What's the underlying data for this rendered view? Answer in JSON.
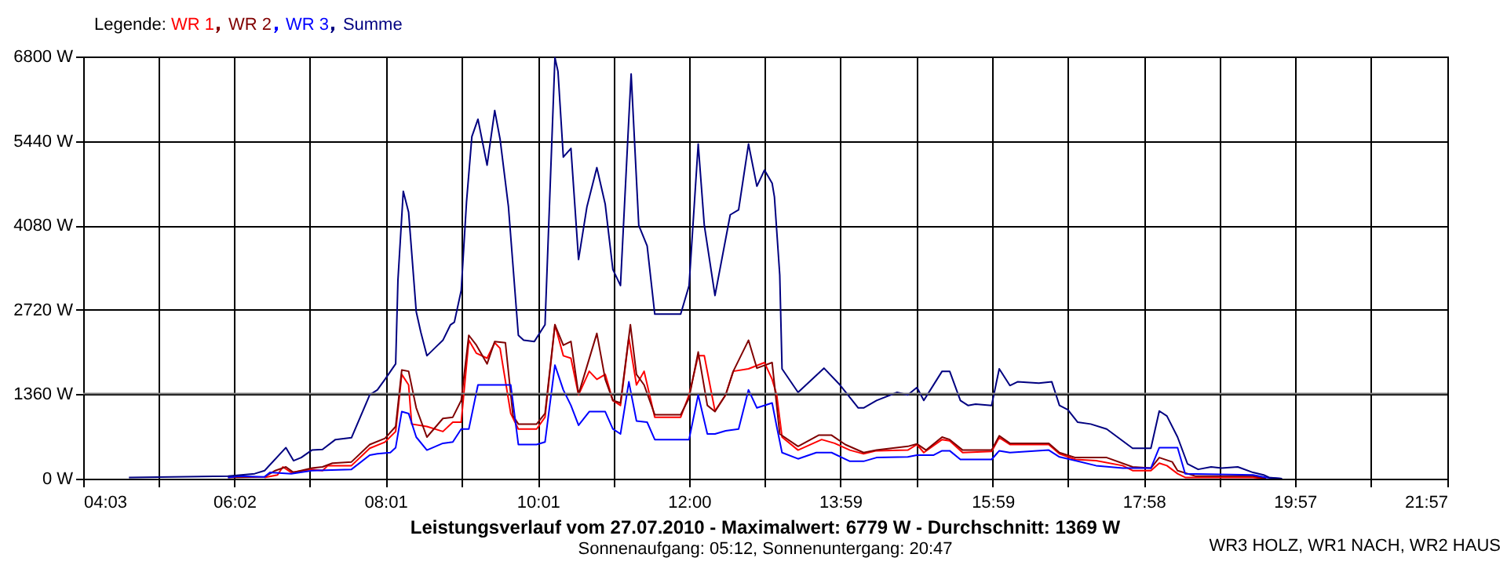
{
  "chart_data": {
    "type": "line",
    "title": "Leistungsverlauf vom 27.07.2010 - Maximalwert: 6779 W - Durchschnitt: 1369 W",
    "subtitle": "Sonnenaufgang: 05:12, Sonnenuntergang: 20:47",
    "legend_title": "Legende:",
    "annotations": [
      "WR3 HOLZ, WR1 NACH, WR2 HAUS"
    ],
    "xlim": [
      4.05,
      21.95
    ],
    "xticks": [
      {
        "value": 4.05,
        "label": "04:03"
      },
      {
        "value": 5.0417,
        "label": null
      },
      {
        "value": 6.0333,
        "label": "06:02"
      },
      {
        "value": 7.025,
        "label": null
      },
      {
        "value": 8.0167,
        "label": "08:01"
      },
      {
        "value": 9.0167,
        "label": null
      },
      {
        "value": 10.0167,
        "label": "10:01"
      },
      {
        "value": 11.0083,
        "label": null
      },
      {
        "value": 12,
        "label": "12:00"
      },
      {
        "value": 12.9917,
        "label": null
      },
      {
        "value": 13.9833,
        "label": "13:59"
      },
      {
        "value": 14.9833,
        "label": null
      },
      {
        "value": 15.9833,
        "label": "15:59"
      },
      {
        "value": 16.975,
        "label": null
      },
      {
        "value": 17.9667,
        "label": "17:58"
      },
      {
        "value": 18.9583,
        "label": null
      },
      {
        "value": 19.95,
        "label": "19:57"
      },
      {
        "value": 20.95,
        "label": null
      },
      {
        "value": 21.95,
        "label": "21:57"
      }
    ],
    "ylim": [
      0,
      6800
    ],
    "yticks": [
      {
        "value": 0,
        "label": "0 W"
      },
      {
        "value": 1360,
        "label": "1360 W"
      },
      {
        "value": 2720,
        "label": "2720 W"
      },
      {
        "value": 4080,
        "label": "4080 W"
      },
      {
        "value": 5440,
        "label": "5440 W"
      },
      {
        "value": 6800,
        "label": "6800 W"
      }
    ],
    "grid": true,
    "legend": "top left",
    "ref_lines": [
      {
        "axis": "y",
        "value": 1370,
        "color": "#808080"
      }
    ],
    "series": [
      {
        "name": "WR 1",
        "color": "#ff0000",
        "x": [
          6.43,
          6.6,
          6.67,
          6.78,
          7.05,
          7.19,
          7.26,
          7.57,
          7.81,
          8.01,
          8.15,
          8.23,
          8.32,
          8.36,
          8.56,
          8.77,
          8.9,
          9.01,
          9.11,
          9.21,
          9.35,
          9.45,
          9.52,
          9.66,
          9.76,
          10.0,
          10.11,
          10.24,
          10.35,
          10.45,
          10.55,
          10.69,
          10.79,
          10.9,
          11.0,
          11.1,
          11.21,
          11.31,
          11.41,
          11.55,
          11.89,
          12.0,
          12.12,
          12.2,
          12.34,
          12.48,
          12.58,
          12.78,
          12.99,
          13.09,
          13.15,
          13.22,
          13.43,
          13.74,
          13.91,
          14.11,
          14.29,
          14.46,
          14.87,
          14.99,
          15.08,
          15.32,
          15.42,
          15.59,
          15.97,
          16.07,
          16.21,
          16.72,
          16.86,
          17.07,
          17.34,
          17.69,
          17.82,
          18.06,
          18.17,
          18.27,
          18.41,
          18.51,
          19.4,
          19.57
        ],
        "values": [
          20,
          60,
          190,
          100,
          150,
          130,
          210,
          210,
          490,
          590,
          760,
          1680,
          1510,
          880,
          840,
          760,
          910,
          910,
          2230,
          2020,
          1940,
          2190,
          2100,
          1050,
          800,
          800,
          990,
          2480,
          1980,
          1940,
          1350,
          1730,
          1600,
          1680,
          1260,
          1180,
          2270,
          1510,
          1730,
          990,
          990,
          1350,
          1980,
          1980,
          1090,
          1350,
          1730,
          1770,
          1870,
          1600,
          1350,
          670,
          460,
          630,
          570,
          460,
          400,
          450,
          460,
          550,
          420,
          630,
          610,
          420,
          440,
          660,
          550,
          550,
          400,
          310,
          290,
          210,
          130,
          130,
          250,
          210,
          80,
          20,
          20,
          0
        ]
      },
      {
        "name": "WR 2",
        "color": "#800000",
        "x": [
          5.95,
          6.43,
          6.57,
          6.71,
          6.81,
          7.05,
          7.19,
          7.32,
          7.57,
          7.81,
          8.01,
          8.15,
          8.23,
          8.32,
          8.42,
          8.56,
          8.77,
          8.9,
          9.01,
          9.11,
          9.21,
          9.35,
          9.45,
          9.59,
          9.69,
          9.76,
          10.0,
          10.11,
          10.24,
          10.35,
          10.45,
          10.55,
          10.79,
          10.9,
          11.0,
          11.1,
          11.23,
          11.31,
          11.41,
          11.55,
          11.89,
          12.0,
          12.12,
          12.24,
          12.34,
          12.48,
          12.58,
          12.78,
          12.89,
          13.09,
          13.19,
          13.43,
          13.7,
          13.87,
          14.05,
          14.29,
          14.46,
          14.87,
          14.99,
          15.11,
          15.32,
          15.42,
          15.59,
          15.97,
          16.07,
          16.21,
          16.72,
          16.86,
          17.07,
          17.48,
          17.82,
          18.06,
          18.17,
          18.34,
          18.41,
          18.65,
          19.4,
          19.57
        ],
        "values": [
          20,
          30,
          130,
          190,
          100,
          170,
          190,
          250,
          270,
          550,
          650,
          840,
          1750,
          1730,
          1140,
          670,
          970,
          990,
          1260,
          2310,
          2150,
          1850,
          2210,
          2190,
          1010,
          880,
          880,
          1050,
          2480,
          2150,
          2210,
          1360,
          2340,
          1600,
          1260,
          1220,
          2480,
          1680,
          1510,
          1030,
          1030,
          1300,
          2040,
          1180,
          1080,
          1350,
          1730,
          2230,
          1780,
          1870,
          720,
          520,
          700,
          700,
          550,
          420,
          460,
          520,
          560,
          460,
          670,
          630,
          460,
          460,
          690,
          570,
          570,
          420,
          340,
          340,
          190,
          170,
          340,
          270,
          130,
          40,
          40,
          0
        ]
      },
      {
        "name": "WR 3",
        "color": "#0000ff",
        "x": [
          5.95,
          6.09,
          6.43,
          6.5,
          6.78,
          7.05,
          7.57,
          7.81,
          7.91,
          8.08,
          8.15,
          8.23,
          8.32,
          8.42,
          8.56,
          8.77,
          8.9,
          9.01,
          9.11,
          9.23,
          9.66,
          9.76,
          10.0,
          10.11,
          10.24,
          10.35,
          10.45,
          10.55,
          10.69,
          10.9,
          11.0,
          11.1,
          11.21,
          11.31,
          11.45,
          11.55,
          12.0,
          12.12,
          12.24,
          12.34,
          12.48,
          12.65,
          12.78,
          12.89,
          13.09,
          13.15,
          13.22,
          13.43,
          13.67,
          13.87,
          14.11,
          14.29,
          14.46,
          14.87,
          14.99,
          15.21,
          15.32,
          15.42,
          15.56,
          15.97,
          16.07,
          16.21,
          16.72,
          16.86,
          17.07,
          17.34,
          17.69,
          18.06,
          18.17,
          18.41,
          18.51,
          19.4,
          19.57,
          19.78
        ],
        "values": [
          20,
          40,
          30,
          100,
          80,
          130,
          150,
          380,
          400,
          420,
          500,
          1080,
          1050,
          670,
          460,
          570,
          590,
          800,
          800,
          1510,
          1510,
          550,
          550,
          590,
          1830,
          1430,
          1180,
          860,
          1080,
          1080,
          800,
          720,
          1560,
          930,
          910,
          630,
          630,
          1350,
          720,
          720,
          770,
          800,
          1430,
          1140,
          1220,
          840,
          420,
          320,
          420,
          420,
          280,
          280,
          340,
          350,
          380,
          380,
          450,
          450,
          310,
          310,
          450,
          420,
          460,
          350,
          290,
          210,
          170,
          170,
          500,
          500,
          80,
          60,
          20,
          0
        ]
      },
      {
        "name": "Summe",
        "color": "#000080",
        "x": [
          4.65,
          5.95,
          6.3,
          6.43,
          6.71,
          6.81,
          6.91,
          7.05,
          7.19,
          7.36,
          7.57,
          7.81,
          7.91,
          8.01,
          8.15,
          8.18,
          8.25,
          8.32,
          8.42,
          8.48,
          8.56,
          8.66,
          8.77,
          8.87,
          8.92,
          9.01,
          9.08,
          9.15,
          9.23,
          9.35,
          9.45,
          9.52,
          9.63,
          9.76,
          9.83,
          9.97,
          10.11,
          10.24,
          10.28,
          10.35,
          10.45,
          10.55,
          10.66,
          10.79,
          10.9,
          11.0,
          11.1,
          11.21,
          11.24,
          11.34,
          11.45,
          11.55,
          11.89,
          12.0,
          12.12,
          12.2,
          12.34,
          12.54,
          12.65,
          12.78,
          12.89,
          12.99,
          13.09,
          13.12,
          13.19,
          13.22,
          13.43,
          13.77,
          13.98,
          14.22,
          14.29,
          14.46,
          14.73,
          14.87,
          14.99,
          15.08,
          15.32,
          15.42,
          15.56,
          15.66,
          15.76,
          15.97,
          16.07,
          16.21,
          16.31,
          16.59,
          16.76,
          16.86,
          16.97,
          17.1,
          17.27,
          17.48,
          17.82,
          17.89,
          18.06,
          18.17,
          18.27,
          18.41,
          18.54,
          18.68,
          18.85,
          18.99,
          19.2,
          19.4,
          19.54,
          19.61,
          19.78
        ],
        "values": [
          20,
          40,
          80,
          130,
          500,
          290,
          340,
          460,
          470,
          630,
          660,
          1350,
          1430,
          1600,
          1850,
          3200,
          4630,
          4290,
          2690,
          2360,
          1980,
          2100,
          2230,
          2480,
          2520,
          3030,
          4460,
          5510,
          5790,
          5050,
          5930,
          5470,
          4380,
          2310,
          2230,
          2210,
          2480,
          6780,
          6560,
          5180,
          5320,
          3530,
          4380,
          5010,
          4420,
          3370,
          3110,
          5810,
          6520,
          4080,
          3750,
          2650,
          2650,
          3110,
          5390,
          4080,
          2950,
          4250,
          4330,
          5390,
          4710,
          4970,
          4760,
          4540,
          3280,
          1770,
          1390,
          1780,
          1510,
          1140,
          1140,
          1260,
          1390,
          1350,
          1470,
          1260,
          1730,
          1730,
          1260,
          1180,
          1200,
          1180,
          1770,
          1500,
          1560,
          1540,
          1560,
          1180,
          1110,
          910,
          880,
          800,
          490,
          490,
          490,
          1090,
          1010,
          670,
          240,
          150,
          190,
          170,
          190,
          100,
          60,
          20,
          0
        ]
      }
    ]
  }
}
